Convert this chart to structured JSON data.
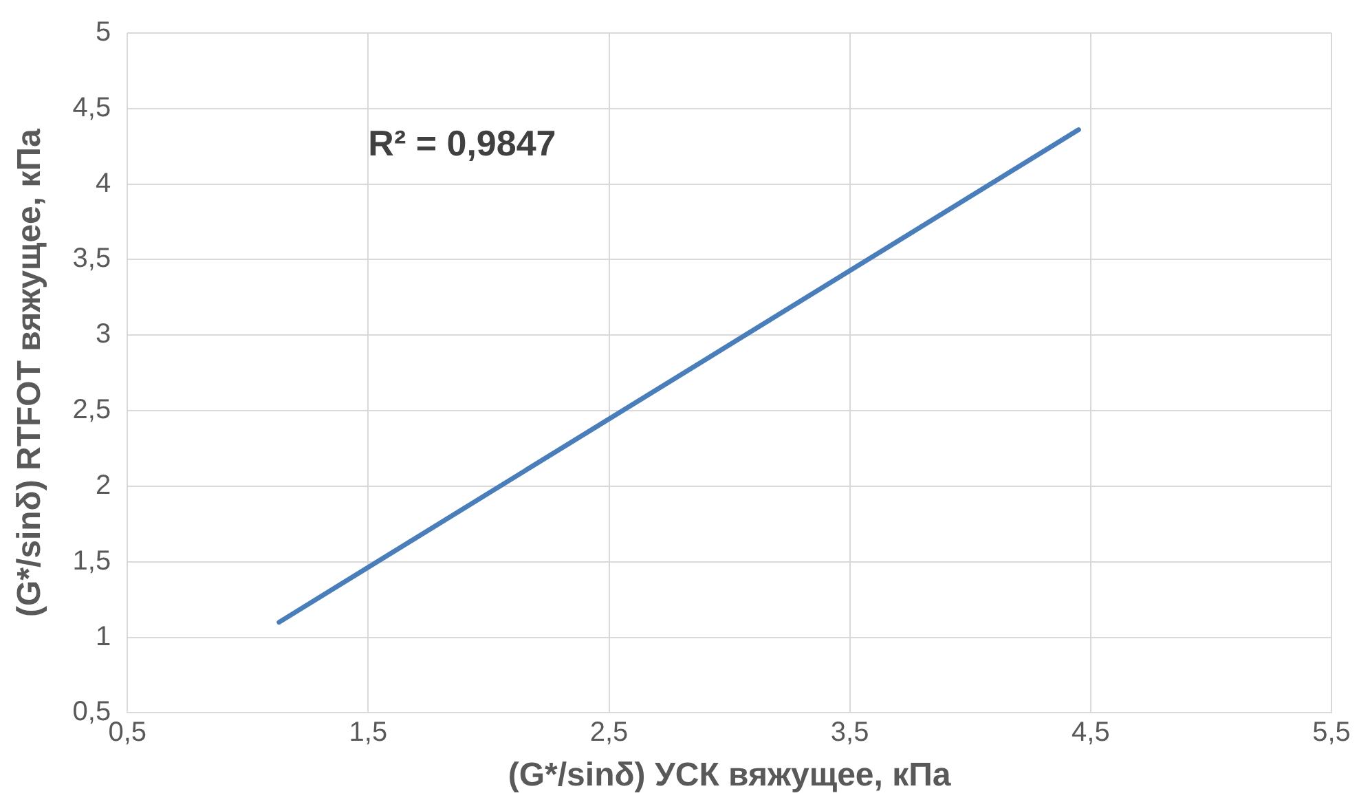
{
  "chart_data": {
    "type": "line",
    "xlabel": "(G*/sinδ) УСК вяжущее, кПа",
    "ylabel": "(G*/sinδ) RTFOT вяжущее, кПа",
    "annotations": [
      "R² = 0,9847"
    ],
    "series": [
      {
        "color": "#4a7ebb",
        "x": [
          1.13,
          4.45
        ],
        "values": [
          1.1,
          4.36
        ]
      }
    ],
    "xlim": [
      0.5,
      5.5
    ],
    "xticks": [
      {
        "value": 0.5,
        "label": "0,5"
      },
      {
        "value": 1.5,
        "label": "1,5"
      },
      {
        "value": 2.5,
        "label": "2,5"
      },
      {
        "value": 3.5,
        "label": "3,5"
      },
      {
        "value": 4.5,
        "label": "4,5"
      },
      {
        "value": 5.5,
        "label": "5,5"
      }
    ],
    "ylim": [
      0.5,
      5
    ],
    "yticks": [
      {
        "value": 0.5,
        "label": "0,5"
      },
      1,
      {
        "value": 1.5,
        "label": "1,5"
      },
      2,
      {
        "value": 2.5,
        "label": "2,5"
      },
      3,
      {
        "value": 3.5,
        "label": "3,5"
      },
      4,
      {
        "value": 4.5,
        "label": "4,5"
      },
      5
    ],
    "grid": true,
    "marker": "none",
    "line_style": "solid"
  }
}
